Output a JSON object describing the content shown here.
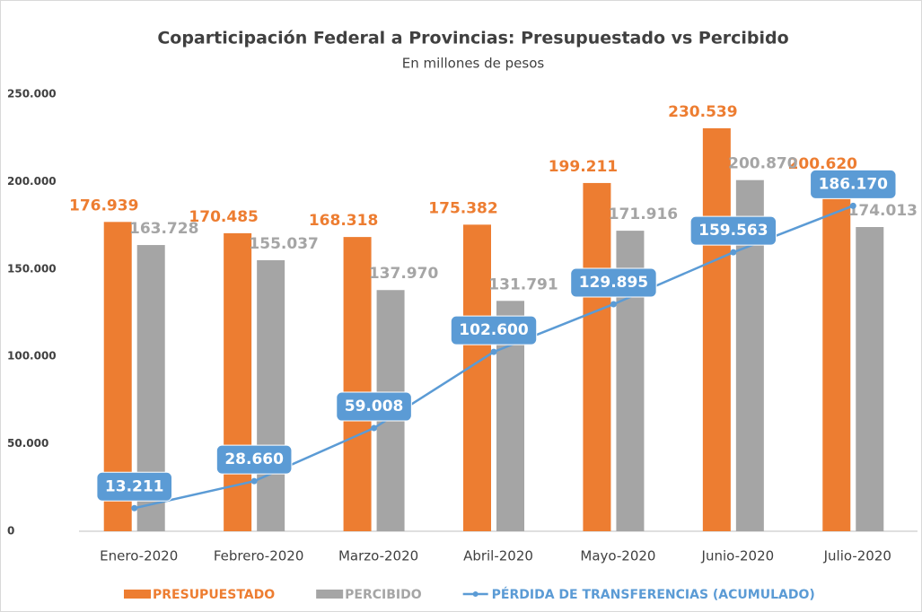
{
  "chart_data": {
    "type": "bar",
    "title": "Coparticipación Federal a Provincias: Presupuestado vs Percibido",
    "subtitle": "En millones de pesos",
    "categories": [
      "Enero-2020",
      "Febrero-2020",
      "Marzo-2020",
      "Abril-2020",
      "Mayo-2020",
      "Junio-2020",
      "Julio-2020"
    ],
    "series": [
      {
        "name": "PRESUPUESTADO",
        "color": "#ed7d31",
        "type": "bar",
        "values": [
          176939,
          170485,
          168318,
          175382,
          199211,
          230539,
          200620
        ],
        "value_labels": [
          "176.939",
          "170.485",
          "168.318",
          "175.382",
          "199.211",
          "230.539",
          "200.620"
        ]
      },
      {
        "name": "PERCIBIDO",
        "color": "#a5a5a5",
        "type": "bar",
        "values": [
          163728,
          155037,
          137970,
          131791,
          171916,
          200870,
          174013
        ],
        "value_labels": [
          "163.728",
          "155.037",
          "137.970",
          "131.791",
          "171.916",
          "200.870",
          "174.013"
        ]
      },
      {
        "name": "PÉRDIDA DE TRANSFERENCIAS (ACUMULADO)",
        "color": "#5b9bd5",
        "type": "line",
        "values": [
          13211,
          28660,
          59008,
          102600,
          129895,
          159563,
          186170
        ],
        "value_labels": [
          "13.211",
          "28.660",
          "59.008",
          "102.600",
          "129.895",
          "159.563",
          "186.170"
        ]
      }
    ],
    "ylim": [
      0,
      250000
    ],
    "yticks": [
      0,
      {
        "value": 50000,
        "label": "50.000"
      },
      {
        "value": 100000,
        "label": "100.000"
      },
      {
        "value": 150000,
        "label": "150.000"
      },
      {
        "value": 200000,
        "label": "200.000"
      },
      {
        "value": 250000,
        "label": "250.000"
      }
    ],
    "grid": false,
    "legend": "bottom"
  }
}
